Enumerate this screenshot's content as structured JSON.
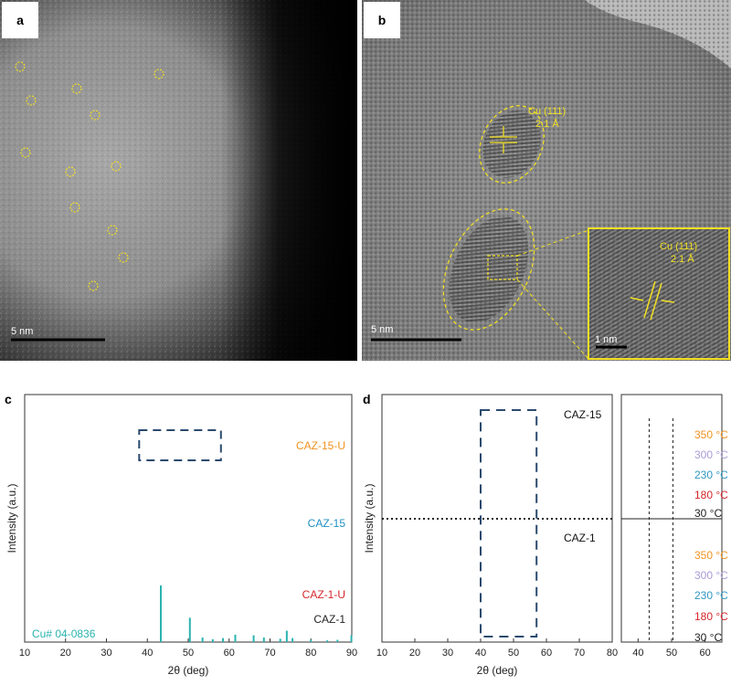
{
  "figure": {
    "panel_a": {
      "letter": "a",
      "scale_label": "5 nm",
      "circle_marker_color": "#f2e022"
    },
    "panel_b": {
      "letter": "b",
      "scale_label": "5 nm",
      "annotation_top": [
        "Cu (111)",
        "2.1 Å"
      ],
      "inset_annotation": [
        "Cu (111)",
        "2.1 Å"
      ],
      "inset_scale_label": "1 nm",
      "marker_color": "#f2e022"
    },
    "panel_c": {
      "letter": "c"
    },
    "panel_d": {
      "letter": "d"
    }
  },
  "chart_data": [
    {
      "panel": "c",
      "type": "line",
      "xlabel": "2θ (deg)",
      "ylabel": "Intensity (a.u.)",
      "xlim": [
        10,
        90
      ],
      "xticks": [
        10,
        20,
        30,
        40,
        50,
        60,
        70,
        80,
        90
      ],
      "series": [
        {
          "name": "CAZ-15-U",
          "color": "#f0921e"
        },
        {
          "name": "CAZ-15",
          "color": "#1f8fc4"
        },
        {
          "name": "CAZ-1-U",
          "color": "#d6262b"
        },
        {
          "name": "CAZ-1",
          "color": "#222222"
        }
      ],
      "reference": {
        "name": "Cu# 04-0836",
        "color": "#2ab3b0",
        "peaks": [
          {
            "x": 43.3,
            "intensity": 100
          },
          {
            "x": 50.4,
            "intensity": 43
          },
          {
            "x": 53.5,
            "intensity": 8
          },
          {
            "x": 56.0,
            "intensity": 5
          },
          {
            "x": 58.5,
            "intensity": 7
          },
          {
            "x": 61.5,
            "intensity": 13
          },
          {
            "x": 66.0,
            "intensity": 12
          },
          {
            "x": 68.5,
            "intensity": 8
          },
          {
            "x": 72.5,
            "intensity": 6
          },
          {
            "x": 74.1,
            "intensity": 20
          },
          {
            "x": 75.5,
            "intensity": 7
          },
          {
            "x": 80.0,
            "intensity": 4
          },
          {
            "x": 84.0,
            "intensity": 3
          },
          {
            "x": 86.5,
            "intensity": 4
          },
          {
            "x": 89.9,
            "intensity": 12
          }
        ]
      },
      "highlight_box_x": [
        38,
        58
      ]
    },
    {
      "panel": "d",
      "type": "line",
      "xlabel": "2θ (deg)",
      "ylabel": "Intensity (a.u.)",
      "xlim": [
        10,
        80
      ],
      "xticks": [
        10,
        20,
        30,
        40,
        50,
        60,
        70,
        80
      ],
      "groups": [
        {
          "name": "CAZ-15",
          "temperatures": [
            "350 °C",
            "300 °C",
            "230 °C",
            "180 °C",
            "30 °C"
          ]
        },
        {
          "name": "CAZ-1",
          "temperatures": [
            "350 °C",
            "300 °C",
            "230 °C",
            "180 °C",
            "30 °C"
          ]
        }
      ],
      "temperature_colors": [
        "#f0921e",
        "#a99ad8",
        "#2f97c0",
        "#d6262b",
        "#222222"
      ],
      "highlight_box_x": [
        40,
        57
      ],
      "inset": {
        "xlim": [
          35,
          65
        ],
        "xticks": [
          40,
          50,
          60
        ],
        "dashed_lines_x": [
          43.3,
          50.4
        ]
      }
    }
  ]
}
